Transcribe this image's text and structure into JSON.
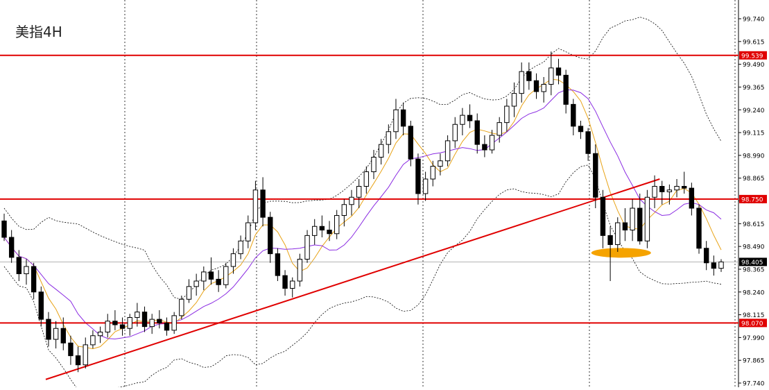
{
  "chart_data": {
    "type": "candlestick",
    "title": "美指4H",
    "y_ticks": [
      "99.740",
      "99.615",
      "99.490",
      "99.365",
      "99.240",
      "99.115",
      "98.990",
      "98.865",
      "98.740",
      "98.615",
      "98.490",
      "98.365",
      "98.240",
      "98.115",
      "97.990",
      "97.865",
      "97.740"
    ],
    "ylim": [
      97.74,
      99.8
    ],
    "grid": "vertical dotted",
    "horizontal_levels": [
      {
        "label": "99.539",
        "value": 99.539,
        "color": "#e00000"
      },
      {
        "label": "98.750",
        "value": 98.75,
        "color": "#e00000"
      },
      {
        "label": "98.070",
        "value": 98.07,
        "color": "#e00000"
      }
    ],
    "current_price": {
      "label": "98.405",
      "value": 98.405
    },
    "trendline": {
      "from_index": 0,
      "from_value": 97.76,
      "to_index": 99,
      "to_value": 98.86,
      "color": "#e00000"
    },
    "highlight_zone": {
      "center_index": 83,
      "value": 98.455,
      "color": "#f5a300"
    },
    "candles": [
      [
        98.63,
        98.67,
        98.52,
        98.54
      ],
      [
        98.54,
        98.58,
        98.4,
        98.43
      ],
      [
        98.43,
        98.47,
        98.3,
        98.34
      ],
      [
        98.34,
        98.42,
        98.28,
        98.38
      ],
      [
        98.38,
        98.4,
        98.2,
        98.24
      ],
      [
        98.24,
        98.27,
        98.05,
        98.09
      ],
      [
        98.09,
        98.13,
        97.94,
        97.98
      ],
      [
        97.98,
        98.08,
        97.93,
        98.04
      ],
      [
        98.04,
        98.1,
        97.92,
        97.96
      ],
      [
        97.96,
        98.0,
        97.84,
        97.89
      ],
      [
        97.89,
        97.94,
        97.8,
        97.84
      ],
      [
        97.84,
        97.99,
        97.82,
        97.95
      ],
      [
        97.95,
        98.03,
        97.93,
        98.0
      ],
      [
        98.0,
        98.05,
        97.96,
        98.02
      ],
      [
        98.02,
        98.12,
        97.99,
        98.08
      ],
      [
        98.08,
        98.14,
        98.03,
        98.06
      ],
      [
        98.06,
        98.1,
        98.0,
        98.04
      ],
      [
        98.04,
        98.12,
        98.0,
        98.1
      ],
      [
        98.1,
        98.18,
        98.05,
        98.13
      ],
      [
        98.13,
        98.16,
        98.02,
        98.05
      ],
      [
        98.05,
        98.12,
        98.01,
        98.09
      ],
      [
        98.09,
        98.14,
        98.04,
        98.07
      ],
      [
        98.07,
        98.1,
        98.0,
        98.03
      ],
      [
        98.03,
        98.13,
        98.01,
        98.11
      ],
      [
        98.11,
        98.22,
        98.09,
        98.2
      ],
      [
        98.2,
        98.31,
        98.18,
        98.27
      ],
      [
        98.27,
        98.34,
        98.22,
        98.3
      ],
      [
        98.3,
        98.38,
        98.25,
        98.35
      ],
      [
        98.35,
        98.43,
        98.28,
        98.31
      ],
      [
        98.31,
        98.36,
        98.24,
        98.28
      ],
      [
        98.28,
        98.4,
        98.26,
        98.38
      ],
      [
        98.38,
        98.48,
        98.34,
        98.45
      ],
      [
        98.45,
        98.55,
        98.42,
        98.52
      ],
      [
        98.52,
        98.66,
        98.48,
        98.62
      ],
      [
        98.62,
        98.85,
        98.58,
        98.8
      ],
      [
        98.8,
        98.87,
        98.6,
        98.65
      ],
      [
        98.65,
        98.68,
        98.4,
        98.45
      ],
      [
        98.45,
        98.48,
        98.3,
        98.33
      ],
      [
        98.33,
        98.36,
        98.22,
        98.26
      ],
      [
        98.26,
        98.32,
        98.21,
        98.3
      ],
      [
        98.3,
        98.45,
        98.27,
        98.42
      ],
      [
        98.42,
        98.58,
        98.4,
        98.55
      ],
      [
        98.55,
        98.64,
        98.5,
        98.6
      ],
      [
        98.6,
        98.66,
        98.54,
        98.58
      ],
      [
        98.58,
        98.63,
        98.52,
        98.56
      ],
      [
        98.56,
        98.69,
        98.53,
        98.66
      ],
      [
        98.66,
        98.75,
        98.6,
        98.72
      ],
      [
        98.72,
        98.8,
        98.66,
        98.76
      ],
      [
        98.76,
        98.86,
        98.7,
        98.82
      ],
      [
        98.82,
        98.93,
        98.78,
        98.9
      ],
      [
        98.9,
        99.02,
        98.86,
        98.98
      ],
      [
        98.98,
        99.08,
        98.94,
        99.05
      ],
      [
        99.05,
        99.16,
        99.0,
        99.12
      ],
      [
        99.12,
        99.3,
        99.08,
        99.24
      ],
      [
        99.24,
        99.28,
        99.1,
        99.15
      ],
      [
        99.15,
        99.18,
        98.93,
        98.97
      ],
      [
        98.97,
        99.0,
        98.72,
        98.78
      ],
      [
        98.78,
        98.9,
        98.74,
        98.86
      ],
      [
        98.86,
        98.96,
        98.82,
        98.93
      ],
      [
        98.93,
        99.0,
        98.88,
        98.96
      ],
      [
        98.96,
        99.1,
        98.93,
        99.07
      ],
      [
        99.07,
        99.2,
        99.03,
        99.16
      ],
      [
        99.16,
        99.25,
        99.1,
        99.21
      ],
      [
        99.21,
        99.27,
        99.14,
        99.18
      ],
      [
        99.18,
        99.22,
        99.0,
        99.05
      ],
      [
        99.05,
        99.1,
        98.98,
        99.02
      ],
      [
        99.02,
        99.13,
        99.0,
        99.1
      ],
      [
        99.1,
        99.2,
        99.06,
        99.17
      ],
      [
        99.17,
        99.3,
        99.12,
        99.26
      ],
      [
        99.26,
        99.39,
        99.2,
        99.33
      ],
      [
        99.33,
        99.5,
        99.28,
        99.45
      ],
      [
        99.45,
        99.5,
        99.35,
        99.4
      ],
      [
        99.4,
        99.44,
        99.3,
        99.34
      ],
      [
        99.34,
        99.42,
        99.28,
        99.38
      ],
      [
        99.38,
        99.56,
        99.32,
        99.47
      ],
      [
        99.47,
        99.52,
        99.38,
        99.43
      ],
      [
        99.43,
        99.46,
        99.22,
        99.27
      ],
      [
        99.27,
        99.3,
        99.1,
        99.15
      ],
      [
        99.15,
        99.18,
        99.08,
        99.12
      ],
      [
        99.12,
        99.14,
        98.96,
        99.0
      ],
      [
        99.0,
        99.05,
        98.7,
        98.76
      ],
      [
        98.76,
        98.8,
        98.48,
        98.55
      ],
      [
        98.55,
        98.6,
        98.3,
        98.5
      ],
      [
        98.5,
        98.65,
        98.46,
        98.62
      ],
      [
        98.62,
        98.7,
        98.52,
        98.58
      ],
      [
        98.58,
        98.75,
        98.52,
        98.7
      ],
      [
        98.7,
        98.78,
        98.5,
        98.52
      ],
      [
        98.52,
        98.8,
        98.48,
        98.76
      ],
      [
        98.76,
        98.88,
        98.7,
        98.82
      ],
      [
        98.82,
        98.85,
        98.72,
        98.79
      ],
      [
        98.79,
        98.83,
        98.72,
        98.8
      ],
      [
        98.8,
        98.86,
        98.76,
        98.82
      ],
      [
        98.82,
        98.9,
        98.78,
        98.81
      ],
      [
        98.81,
        98.84,
        98.66,
        98.7
      ],
      [
        98.7,
        98.72,
        98.45,
        98.48
      ],
      [
        98.48,
        98.52,
        98.36,
        98.4
      ],
      [
        98.4,
        98.44,
        98.33,
        98.37
      ],
      [
        98.37,
        98.42,
        98.35,
        98.405
      ]
    ]
  }
}
